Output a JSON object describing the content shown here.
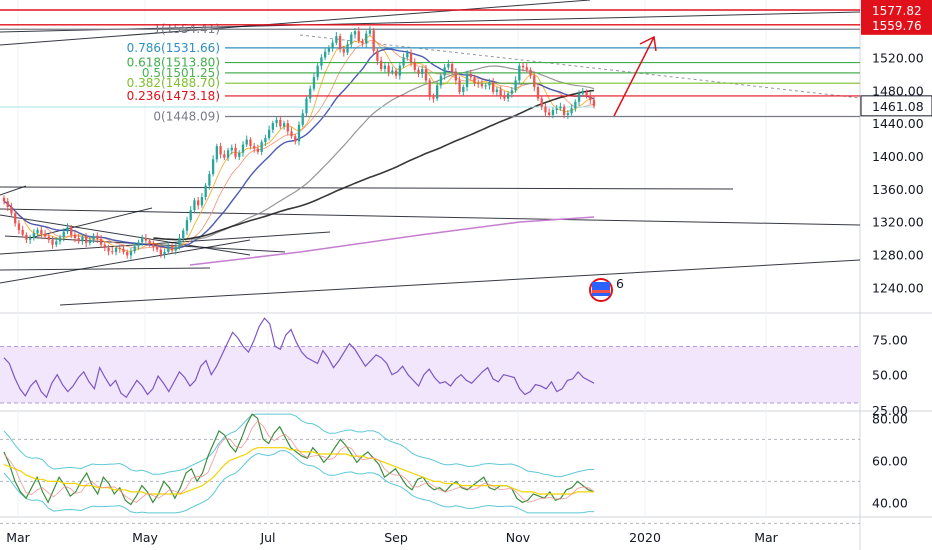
{
  "chart_data": [
    {
      "type": "candlestick",
      "title": "",
      "ylim": [
        1210,
        1590
      ],
      "y_ticks": [
        "1520.00",
        "1480.00",
        "1440.00",
        "1400.00",
        "1360.00",
        "1320.00",
        "1280.00",
        "1240.00"
      ],
      "last_price": {
        "label": "1461.08",
        "value": 1461.08,
        "color": "#131722"
      },
      "horizontal_levels": [
        {
          "label": "1577.82",
          "value": 1577.82,
          "color": "#e0111b"
        },
        {
          "label": "1559.76",
          "value": 1559.76,
          "color": "#e0111b"
        }
      ],
      "fib_levels": [
        {
          "label": "1(1554.41)",
          "value": 1554.41,
          "color": "#787b86"
        },
        {
          "label": "0.786(1531.66)",
          "value": 1531.66,
          "color": "#2f8fbf"
        },
        {
          "label": "0.618(1513.80)",
          "value": 1513.8,
          "color": "#3fae4a"
        },
        {
          "label": "0.5(1501.25)",
          "value": 1501.25,
          "color": "#4caf50"
        },
        {
          "label": "0.382(1488.70)",
          "value": 1488.7,
          "color": "#7fbf2f"
        },
        {
          "label": "0.236(1473.18)",
          "value": 1473.18,
          "color": "#e0111b"
        },
        {
          "label": "0(1448.09)",
          "value": 1448.09,
          "color": "#787b86"
        }
      ],
      "close_series": [
        1345,
        1338,
        1330,
        1318,
        1310,
        1304,
        1298,
        1300,
        1306,
        1310,
        1305,
        1302,
        1298,
        1292,
        1296,
        1301,
        1308,
        1313,
        1304,
        1300,
        1296,
        1302,
        1294,
        1298,
        1303,
        1299,
        1292,
        1288,
        1284,
        1283,
        1288,
        1287,
        1283,
        1279,
        1284,
        1290,
        1295,
        1300,
        1297,
        1293,
        1289,
        1286,
        1280,
        1283,
        1291,
        1285,
        1289,
        1300,
        1309,
        1322,
        1334,
        1346,
        1340,
        1350,
        1364,
        1378,
        1396,
        1412,
        1402,
        1398,
        1407,
        1410,
        1399,
        1404,
        1414,
        1420,
        1412,
        1409,
        1405,
        1417,
        1422,
        1432,
        1440,
        1444,
        1436,
        1440,
        1430,
        1424,
        1418,
        1438,
        1452,
        1470,
        1482,
        1496,
        1510,
        1520,
        1527,
        1532,
        1538,
        1546,
        1530,
        1526,
        1536,
        1548,
        1552,
        1540,
        1537,
        1549,
        1553,
        1528,
        1516,
        1506,
        1510,
        1502,
        1504,
        1498,
        1510,
        1520,
        1526,
        1514,
        1505,
        1500,
        1506,
        1492,
        1472,
        1470,
        1486,
        1498,
        1508,
        1512,
        1503,
        1492,
        1478,
        1484,
        1500,
        1496,
        1489,
        1488,
        1485,
        1486,
        1490,
        1478,
        1481,
        1474,
        1470,
        1476,
        1480,
        1492,
        1510,
        1508,
        1505,
        1498,
        1484,
        1470,
        1460,
        1453,
        1450,
        1456,
        1458,
        1460,
        1450,
        1452,
        1458,
        1466,
        1476,
        1478,
        1474,
        1468,
        1461
      ],
      "x_ticks": [
        "Mar",
        "May",
        "Jul",
        "Sep",
        "Nov",
        "2020",
        "Mar"
      ],
      "badge": {
        "label": "6"
      }
    },
    {
      "type": "line",
      "title": "",
      "ylim": [
        25,
        93
      ],
      "y_ticks": [
        "75.00",
        "50.00",
        "25.00"
      ],
      "band": [
        30,
        70
      ],
      "series": [
        {
          "values": [
            62,
            58,
            48,
            40,
            35,
            42,
            46,
            38,
            34,
            44,
            50,
            43,
            38,
            42,
            48,
            52,
            45,
            40,
            55,
            48,
            42,
            46,
            37,
            34,
            40,
            46,
            42,
            36,
            40,
            49,
            44,
            38,
            45,
            52,
            48,
            42,
            46,
            56,
            60,
            50,
            56,
            64,
            72,
            80,
            76,
            70,
            66,
            74,
            84,
            90,
            86,
            70,
            68,
            78,
            82,
            73,
            66,
            62,
            60,
            58,
            67,
            62,
            55,
            60,
            66,
            72,
            68,
            62,
            56,
            60,
            64,
            62,
            58,
            50,
            52,
            56,
            50,
            46,
            42,
            50,
            54,
            48,
            44,
            45,
            42,
            47,
            50,
            46,
            44,
            48,
            52,
            55,
            47,
            45,
            50,
            49,
            48,
            40,
            36,
            38,
            43,
            42,
            40,
            45,
            38,
            40,
            46,
            47,
            52,
            48,
            46,
            44
          ]
        }
      ]
    },
    {
      "type": "line",
      "title": "",
      "ylim": [
        34,
        83
      ],
      "y_ticks": [
        "80.00",
        "60.00",
        "40.00"
      ],
      "series": [
        {
          "color": "#3d8e3d",
          "values": [
            64,
            58,
            50,
            45,
            42,
            47,
            52,
            45,
            40,
            46,
            52,
            48,
            43,
            45,
            50,
            54,
            48,
            44,
            52,
            49,
            44,
            47,
            41,
            39,
            43,
            48,
            45,
            40,
            44,
            50,
            47,
            42,
            47,
            54,
            56,
            50,
            54,
            62,
            68,
            74,
            72,
            67,
            64,
            70,
            77,
            82,
            80,
            70,
            68,
            73,
            76,
            71,
            66,
            64,
            62,
            61,
            66,
            63,
            59,
            62,
            66,
            70,
            67,
            63,
            59,
            62,
            64,
            61,
            58,
            52,
            54,
            56,
            52,
            48,
            46,
            51,
            52,
            48,
            46,
            47,
            45,
            48,
            50,
            47,
            46,
            48,
            50,
            52,
            47,
            46,
            48,
            48,
            47,
            42,
            40,
            41,
            44,
            43,
            42,
            45,
            41,
            42,
            46,
            47,
            50,
            48,
            46,
            45
          ]
        },
        {
          "color": "#f2d400",
          "values": [
            58,
            57,
            56,
            55,
            53,
            52,
            51,
            51,
            50,
            50,
            50,
            49,
            49,
            49,
            48,
            48,
            48,
            47,
            47,
            47,
            46,
            46,
            46,
            45,
            45,
            45,
            44,
            44,
            44,
            44,
            44,
            44,
            44,
            45,
            46,
            47,
            48,
            50,
            52,
            55,
            58,
            60,
            61,
            62,
            63,
            65,
            66,
            66,
            66,
            66,
            66,
            66,
            65,
            65,
            64,
            64,
            64,
            63,
            63,
            63,
            63,
            63,
            63,
            62,
            62,
            62,
            61,
            61,
            60,
            59,
            58,
            57,
            56,
            55,
            54,
            53,
            52,
            51,
            50,
            50,
            49,
            49,
            49,
            48,
            48,
            48,
            48,
            48,
            48,
            48,
            48,
            48,
            47,
            46,
            45,
            45,
            45,
            44,
            44,
            44,
            44,
            44,
            44,
            44,
            45,
            45,
            45,
            45
          ]
        }
      ],
      "dashed_levels": [
        70,
        50,
        30
      ]
    }
  ]
}
